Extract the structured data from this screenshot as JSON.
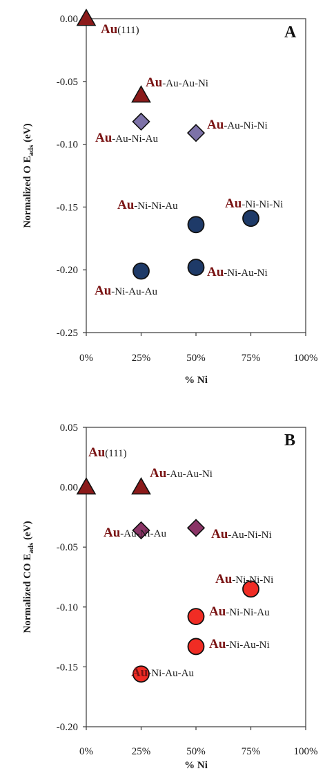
{
  "colors": {
    "au_text": "#7a1414",
    "triangle": "#8b1a1a",
    "diamond_A": "#7d72a8",
    "circle_A": "#1e3a68",
    "diamond_B": "#8a3466",
    "circle_B": "#f02c24",
    "axis": "#3a3a3a"
  },
  "chart_data": [
    {
      "type": "scatter",
      "panel_label": "A",
      "ylabel_main": "Normalized O E",
      "ylabel_sub": "ads",
      "ylabel_unit": " (eV)",
      "xlabel": "% Ni",
      "xlim": [
        0,
        100
      ],
      "ylim": [
        -0.25,
        0.0
      ],
      "x_ticks": [
        0,
        25,
        50,
        75,
        100
      ],
      "x_tick_labels": [
        "0%",
        "25%",
        "50%",
        "75%",
        "100%"
      ],
      "y_ticks": [
        0.0,
        -0.05,
        -0.1,
        -0.15,
        -0.2,
        -0.25
      ],
      "y_tick_labels": [
        "0.00",
        "-0.05",
        "-0.10",
        "-0.15",
        "-0.20",
        "-0.25"
      ],
      "points": [
        {
          "x": 0,
          "y": 0.0,
          "marker": "triangle",
          "bold": "Au",
          "rest": "(111)"
        },
        {
          "x": 25,
          "y": -0.061,
          "marker": "triangle",
          "bold": "Au",
          "rest": "-Au-Au-Ni"
        },
        {
          "x": 25,
          "y": -0.082,
          "marker": "diamond",
          "bold": "Au",
          "rest": "-Au-Ni-Au"
        },
        {
          "x": 50,
          "y": -0.091,
          "marker": "diamond",
          "bold": "Au",
          "rest": "-Au-Ni-Ni"
        },
        {
          "x": 50,
          "y": -0.164,
          "marker": "circle",
          "bold": "Au",
          "rest": "-Ni-Ni-Au"
        },
        {
          "x": 75,
          "y": -0.159,
          "marker": "circle",
          "bold": "Au",
          "rest": "-Ni-Ni-Ni"
        },
        {
          "x": 25,
          "y": -0.201,
          "marker": "circle",
          "bold": "Au",
          "rest": "-Ni-Au-Au"
        },
        {
          "x": 50,
          "y": -0.198,
          "marker": "circle",
          "bold": "Au",
          "rest": "-Ni-Au-Ni"
        }
      ]
    },
    {
      "type": "scatter",
      "panel_label": "B",
      "ylabel_main": "Normalized CO E",
      "ylabel_sub": "ads",
      "ylabel_unit": " (eV)",
      "xlabel": "% Ni",
      "xlim": [
        0,
        100
      ],
      "ylim": [
        -0.2,
        0.05
      ],
      "x_ticks": [
        0,
        25,
        50,
        75,
        100
      ],
      "x_tick_labels": [
        "0%",
        "25%",
        "50%",
        "75%",
        "100%"
      ],
      "y_ticks": [
        0.05,
        0.0,
        -0.05,
        -0.1,
        -0.15,
        -0.2
      ],
      "y_tick_labels": [
        "0.05",
        "0.00",
        "-0.05",
        "-0.10",
        "-0.15",
        "-0.20"
      ],
      "points": [
        {
          "x": 0,
          "y": 0.0,
          "marker": "triangle",
          "bold": "Au",
          "rest": "(111)"
        },
        {
          "x": 25,
          "y": 0.0,
          "marker": "triangle",
          "bold": "Au",
          "rest": "-Au-Au-Ni"
        },
        {
          "x": 25,
          "y": -0.036,
          "marker": "diamond",
          "bold": "Au",
          "rest": "-Au-Ni-Au"
        },
        {
          "x": 50,
          "y": -0.034,
          "marker": "diamond",
          "bold": "Au",
          "rest": "-Au-Ni-Ni"
        },
        {
          "x": 75,
          "y": -0.085,
          "marker": "circle",
          "bold": "Au",
          "rest": "-Ni-Ni-Ni"
        },
        {
          "x": 50,
          "y": -0.108,
          "marker": "circle",
          "bold": "Au",
          "rest": "-Ni-Ni-Au"
        },
        {
          "x": 50,
          "y": -0.133,
          "marker": "circle",
          "bold": "Au",
          "rest": "-Ni-Au-Ni"
        },
        {
          "x": 25,
          "y": -0.156,
          "marker": "circle",
          "bold": "Au",
          "rest": "-Ni-Au-Au"
        }
      ]
    }
  ]
}
